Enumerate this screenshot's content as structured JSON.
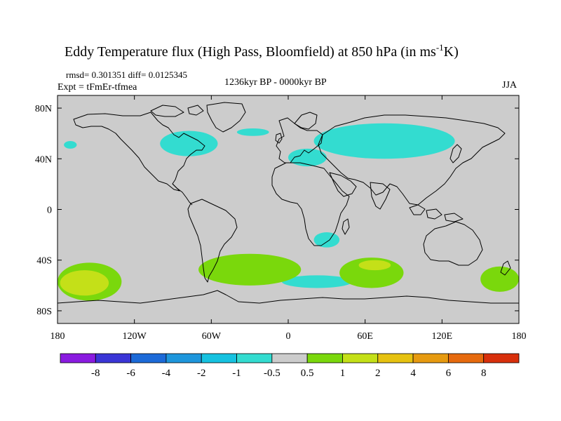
{
  "chart_data": {
    "type": "heatmap",
    "title_main": "Eddy Temperature flux (High Pass, Bloomfield) at 850 hPa (in ms",
    "title_sup": "-1",
    "title_end": "K)",
    "stats": "rmsd= 0.301351 diff= 0.0125345",
    "experiment": "Expt = tFmEr-tfmea",
    "period": "1236kyr BP - 0000kyr BP",
    "season": "JJA",
    "x_tick_labels": [
      "180",
      "120W",
      "60W",
      "0",
      "60E",
      "120E",
      "180"
    ],
    "x_tick_values": [
      -180,
      -120,
      -60,
      0,
      60,
      120,
      180
    ],
    "y_tick_labels": [
      "80N",
      "40N",
      "0",
      "40S",
      "80S"
    ],
    "y_tick_values": [
      80,
      40,
      0,
      -40,
      -80
    ],
    "xlim": [
      -180,
      180
    ],
    "ylim": [
      -90,
      90
    ],
    "colorbar": {
      "labels": [
        "-8",
        "-6",
        "-4",
        "-2",
        "-1",
        "-0.5",
        "0.5",
        "1",
        "2",
        "4",
        "6",
        "8"
      ],
      "colors": [
        "#8a1be0",
        "#3a35d6",
        "#1c6ad8",
        "#1e96dc",
        "#16c2e0",
        "#33dcd0",
        "#cccccc",
        "#7ad80c",
        "#c4e018",
        "#e6c211",
        "#e69a10",
        "#e66a0e",
        "#d8300c"
      ]
    },
    "anomaly_regions": [
      {
        "name": "north-america-cyan",
        "level": "-1 to -0.5",
        "lon": [
          -100,
          -55
        ],
        "lat": [
          42,
          62
        ]
      },
      {
        "name": "north-atlantic-cyan",
        "level": "-1 to -0.5",
        "lon": [
          -40,
          -15
        ],
        "lat": [
          58,
          64
        ]
      },
      {
        "name": "eurasia-cyan",
        "level": "-1 to -0.5",
        "lon": [
          20,
          130
        ],
        "lat": [
          40,
          68
        ]
      },
      {
        "name": "europe-cyan",
        "level": "-1 to -0.5",
        "lon": [
          0,
          30
        ],
        "lat": [
          34,
          48
        ]
      },
      {
        "name": "pacific-nw-cyan",
        "level": "-1 to -0.5",
        "lon": [
          -175,
          -165
        ],
        "lat": [
          48,
          54
        ]
      },
      {
        "name": "southern-africa-cyan",
        "level": "-1 to -0.5",
        "lon": [
          20,
          40
        ],
        "lat": [
          -30,
          -18
        ]
      },
      {
        "name": "southern-ocean-cyan",
        "level": "-1 to -0.5",
        "lon": [
          -5,
          50
        ],
        "lat": [
          -62,
          -52
        ]
      },
      {
        "name": "south-pacific-green",
        "level": "0.5 to 1",
        "lon": [
          -180,
          -130
        ],
        "lat": [
          -72,
          -42
        ]
      },
      {
        "name": "south-pacific-yellow",
        "level": "1 to 2",
        "lon": [
          -178,
          -140
        ],
        "lat": [
          -68,
          -48
        ]
      },
      {
        "name": "south-atlantic-green",
        "level": "0.5 to 1",
        "lon": [
          -70,
          10
        ],
        "lat": [
          -60,
          -35
        ]
      },
      {
        "name": "south-indian-green",
        "level": "0.5 to 1",
        "lon": [
          40,
          90
        ],
        "lat": [
          -62,
          -38
        ]
      },
      {
        "name": "south-indian-yellow",
        "level": "1 to 2",
        "lon": [
          55,
          80
        ],
        "lat": [
          -48,
          -40
        ]
      },
      {
        "name": "tasman-green",
        "level": "0.5 to 1",
        "lon": [
          150,
          180
        ],
        "lat": [
          -65,
          -45
        ]
      }
    ]
  }
}
